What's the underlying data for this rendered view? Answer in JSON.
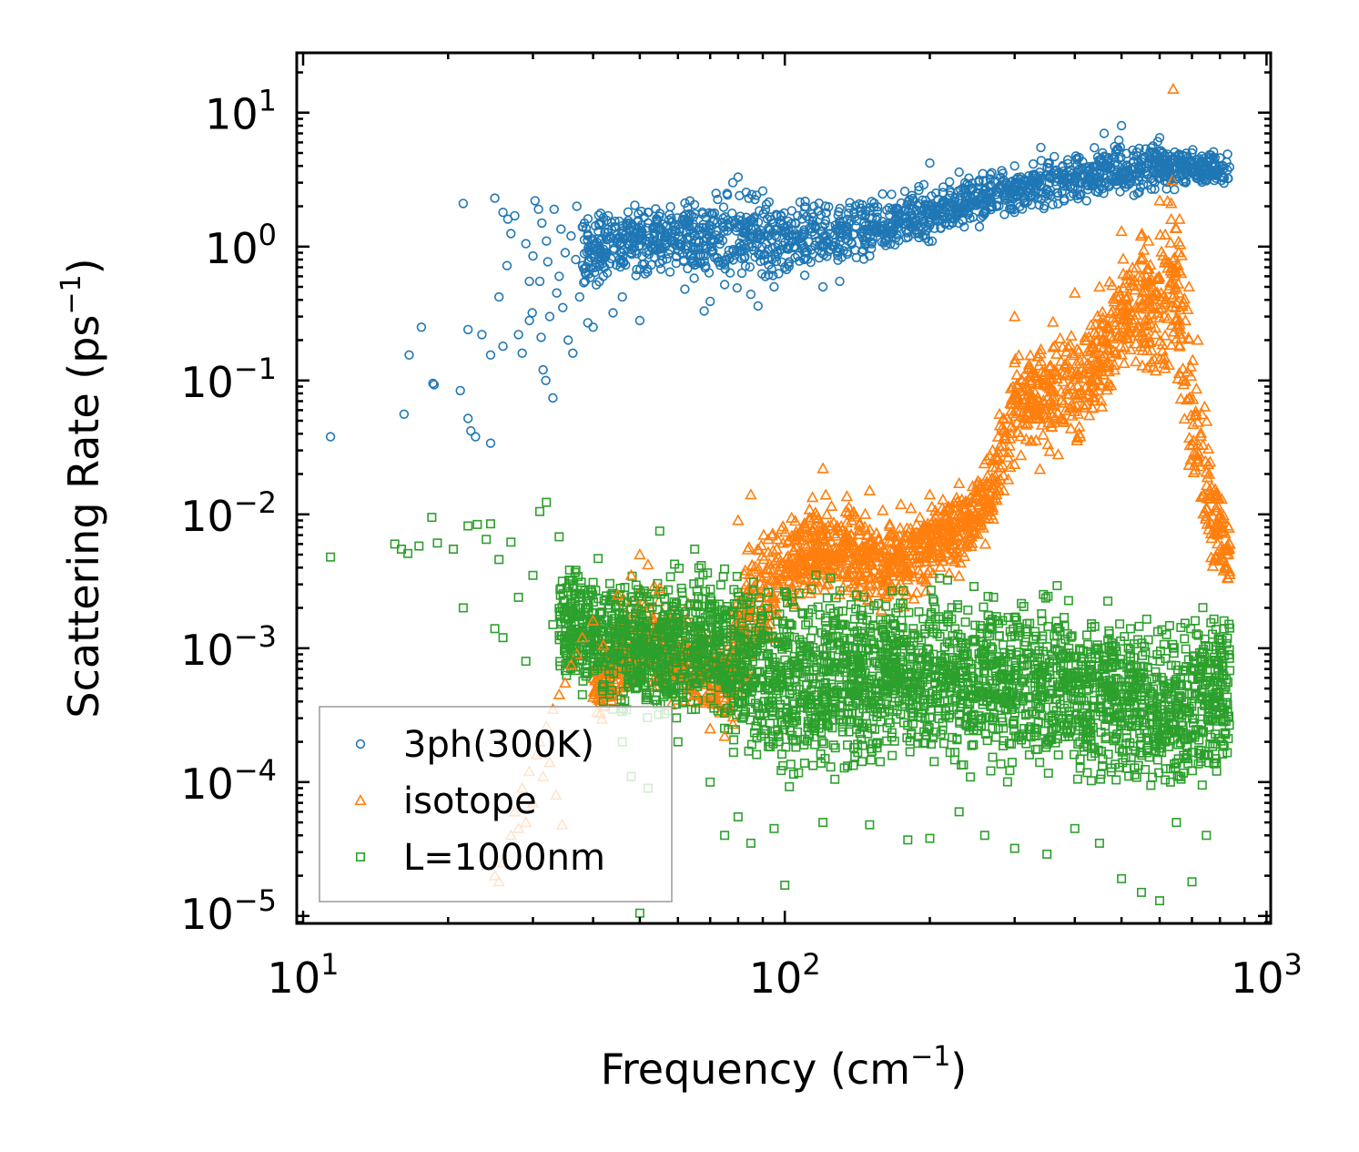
{
  "chart_data": {
    "type": "scatter",
    "xscale": "log",
    "yscale": "log",
    "xlim": [
      9.7,
      1020
    ],
    "ylim": [
      8.8e-06,
      28
    ],
    "xlabel": {
      "base": "Frequency (cm",
      "sup": "−1",
      "close": ")"
    },
    "ylabel": {
      "base": "Scattering Rate (ps",
      "sup": "−1",
      "close": ")"
    },
    "xticks": [
      {
        "value": 10,
        "base": "10",
        "exp": "1"
      },
      {
        "value": 100,
        "base": "10",
        "exp": "2"
      },
      {
        "value": 1000,
        "base": "10",
        "exp": "3"
      }
    ],
    "yticks": [
      {
        "value": 10,
        "base": "10",
        "exp": "1"
      },
      {
        "value": 1,
        "base": "10",
        "exp": "0"
      },
      {
        "value": 0.1,
        "base": "10",
        "exp": "−1"
      },
      {
        "value": 0.01,
        "base": "10",
        "exp": "−2"
      },
      {
        "value": 0.001,
        "base": "10",
        "exp": "−3"
      },
      {
        "value": 0.0001,
        "base": "10",
        "exp": "−4"
      },
      {
        "value": 1e-05,
        "base": "10",
        "exp": "−5"
      }
    ],
    "legend_position": "lower-left",
    "series": [
      {
        "name": "3ph(300K)",
        "marker": "circle",
        "color": "#1f77b4",
        "points": [
          [
            11.4,
            0.038
          ],
          [
            16.2,
            0.056
          ],
          [
            16.6,
            0.155
          ],
          [
            17.6,
            0.25
          ],
          [
            18.6,
            0.095
          ],
          [
            18.7,
            0.093
          ],
          [
            21.2,
            0.084
          ],
          [
            21.5,
            2.1
          ],
          [
            22.0,
            0.24
          ],
          [
            22.0,
            0.052
          ],
          [
            22.3,
            0.042
          ],
          [
            22.8,
            0.038
          ],
          [
            23.5,
            0.22
          ],
          [
            24.5,
            0.034
          ],
          [
            24.5,
            0.155
          ],
          [
            25.0,
            2.3
          ],
          [
            25.5,
            0.42
          ],
          [
            26.0,
            0.18
          ],
          [
            26.0,
            1.8
          ],
          [
            26.5,
            0.72
          ],
          [
            26.6,
            1.6
          ],
          [
            27.0,
            1.25
          ],
          [
            27.5,
            1.7
          ],
          [
            28.0,
            0.22
          ],
          [
            28.5,
            0.16
          ],
          [
            29.0,
            1.05
          ],
          [
            29.5,
            0.28
          ],
          [
            29.5,
            0.55
          ],
          [
            29.9,
            0.32
          ],
          [
            30.0,
            0.85
          ],
          [
            30.3,
            2.2
          ],
          [
            30.8,
            1.9
          ],
          [
            31.0,
            0.55
          ],
          [
            31.2,
            0.21
          ],
          [
            31.3,
            1.5
          ],
          [
            31.5,
            0.12
          ],
          [
            31.9,
            0.1
          ],
          [
            32.0,
            1.1
          ],
          [
            32.2,
            0.77
          ],
          [
            32.5,
            0.3
          ],
          [
            33.0,
            0.074
          ],
          [
            33.2,
            1.9
          ],
          [
            33.6,
            0.45
          ],
          [
            34.0,
            0.6
          ],
          [
            34.3,
            1.35
          ],
          [
            34.6,
            0.35
          ],
          [
            35.0,
            0.9
          ],
          [
            35.5,
            0.2
          ],
          [
            36.0,
            1.2
          ],
          [
            36.3,
            0.16
          ],
          [
            36.8,
            0.8
          ],
          [
            37.0,
            2.0
          ],
          [
            37.5,
            0.42
          ],
          [
            38.0,
            1.4
          ],
          [
            38.5,
            0.55
          ],
          [
            39.0,
            0.27
          ],
          [
            39.5,
            1.0
          ],
          [
            40.0,
            0.25
          ],
          [
            40.5,
            0.7
          ],
          [
            41.0,
            1.3
          ],
          [
            42.0,
            0.6
          ],
          [
            43.0,
            1.7
          ],
          [
            44.0,
            0.32
          ],
          [
            45.0,
            1.15
          ],
          [
            46.0,
            0.42
          ],
          [
            47.0,
            1.5
          ],
          [
            48.0,
            0.9
          ],
          [
            50.0,
            0.28
          ],
          [
            52.0,
            1.8
          ],
          [
            55.0,
            0.75
          ],
          [
            58.0,
            1.1
          ],
          [
            62.0,
            0.48
          ],
          [
            68.0,
            0.33
          ],
          [
            70.0,
            0.39
          ],
          [
            72.0,
            2.5
          ],
          [
            75.0,
            0.52
          ],
          [
            78.0,
            3.0
          ],
          [
            80.0,
            3.3
          ],
          [
            85.0,
            0.44
          ],
          [
            88.0,
            0.36
          ],
          [
            90.0,
            2.6
          ],
          [
            95.0,
            0.5
          ],
          [
            100.0,
            0.7
          ],
          [
            110.0,
            0.61
          ],
          [
            115.0,
            2.0
          ],
          [
            120.0,
            0.5
          ],
          [
            130.0,
            0.55
          ],
          [
            150.0,
            0.85
          ],
          [
            200.0,
            4.2
          ],
          [
            230.0,
            3.6
          ],
          [
            260.0,
            1.8
          ],
          [
            300.0,
            4.0
          ],
          [
            340.0,
            5.5
          ],
          [
            380.0,
            2.2
          ],
          [
            420.0,
            3.0
          ],
          [
            460.0,
            7.0
          ],
          [
            500.0,
            8.0
          ],
          [
            540.0,
            2.5
          ],
          [
            600.0,
            6.5
          ],
          [
            650.0,
            3.2
          ],
          [
            700.0,
            5.0
          ],
          [
            750.0,
            3.1
          ],
          [
            800.0,
            4.6
          ],
          [
            830.0,
            4.9
          ]
        ],
        "band": {
          "x": [
            [
              38,
              0.35,
              2.5
            ],
            [
              45,
              0.45,
              2.5
            ],
            [
              55,
              0.55,
              2.5
            ],
            [
              65,
              0.45,
              2.8
            ],
            [
              75,
              0.38,
              3.3
            ],
            [
              85,
              0.42,
              3.2
            ],
            [
              100,
              0.5,
              2.7
            ],
            [
              125,
              0.55,
              2.6
            ],
            [
              160,
              0.75,
              2.7
            ],
            [
              200,
              1.0,
              3.2
            ],
            [
              250,
              1.3,
              3.8
            ],
            [
              300,
              1.5,
              4.6
            ],
            [
              400,
              1.9,
              5.7
            ],
            [
              500,
              2.2,
              7.2
            ],
            [
              600,
              2.3,
              7.0
            ],
            [
              700,
              2.4,
              6.2
            ],
            [
              840,
              2.6,
              5.0
            ]
          ],
          "count": 1700
        }
      },
      {
        "name": "isotope",
        "marker": "triangle",
        "color": "#ff7f0e",
        "points": [
          [
            25.0,
            2e-05
          ],
          [
            25.5,
            1.8e-05
          ],
          [
            26.0,
            2.5e-05
          ],
          [
            27.0,
            4e-05
          ],
          [
            27.5,
            6e-05
          ],
          [
            28.0,
            4.5e-05
          ],
          [
            28.5,
            9e-05
          ],
          [
            29.0,
            5e-05
          ],
          [
            29.5,
            0.00012
          ],
          [
            30.0,
            7e-05
          ],
          [
            30.5,
            0.00016
          ],
          [
            31.0,
            0.0002
          ],
          [
            31.5,
            0.00011
          ],
          [
            32.0,
            0.00026
          ],
          [
            32.5,
            0.00014
          ],
          [
            33.0,
            0.00035
          ],
          [
            33.5,
            8e-05
          ],
          [
            34.0,
            0.00045
          ],
          [
            34.5,
            4.8e-05
          ],
          [
            35.0,
            0.00055
          ],
          [
            36.0,
            0.00075
          ],
          [
            37.0,
            0.0009
          ],
          [
            38.0,
            0.0012
          ],
          [
            40.0,
            0.0016
          ],
          [
            42.0,
            0.00105
          ],
          [
            45.0,
            0.0025
          ],
          [
            48.0,
            0.0035
          ],
          [
            50.0,
            0.005
          ],
          [
            52.0,
            0.0042
          ],
          [
            55.0,
            0.0028
          ],
          [
            65.0,
            0.00045
          ],
          [
            70.0,
            0.00025
          ],
          [
            75.0,
            0.00022
          ],
          [
            80.0,
            0.009
          ],
          [
            85.0,
            0.014
          ],
          [
            120.0,
            0.022
          ],
          [
            150.0,
            0.015
          ],
          [
            200.0,
            0.014
          ],
          [
            230.0,
            0.017
          ],
          [
            270.0,
            0.03
          ],
          [
            300.0,
            0.3
          ],
          [
            340.0,
            0.17
          ],
          [
            400.0,
            0.45
          ],
          [
            450.0,
            0.5
          ],
          [
            500.0,
            1.3
          ],
          [
            550.0,
            1.2
          ],
          [
            600.0,
            2.2
          ],
          [
            640.0,
            15.0
          ],
          [
            660.0,
            1.6
          ],
          [
            690.0,
            0.5
          ],
          [
            720.0,
            0.2
          ],
          [
            760.0,
            0.02
          ],
          [
            800.0,
            0.008
          ],
          [
            830.0,
            0.004
          ]
        ],
        "band": {
          "x": [
            [
              40,
              0.00025,
              0.001
            ],
            [
              50,
              0.0003,
              0.0045
            ],
            [
              60,
              0.0003,
              0.0025
            ],
            [
              75,
              0.0002,
              0.0015
            ],
            [
              82,
              0.0002,
              0.009
            ],
            [
              100,
              0.0015,
              0.012
            ],
            [
              130,
              0.0018,
              0.02
            ],
            [
              170,
              0.0015,
              0.012
            ],
            [
              200,
              0.0025,
              0.014
            ],
            [
              240,
              0.0035,
              0.02
            ],
            [
              270,
              0.006,
              0.04
            ],
            [
              300,
              0.02,
              0.25
            ],
            [
              350,
              0.02,
              0.3
            ],
            [
              400,
              0.02,
              0.45
            ],
            [
              450,
              0.04,
              0.6
            ],
            [
              500,
              0.08,
              1.0
            ],
            [
              560,
              0.08,
              1.8
            ],
            [
              620,
              0.05,
              3.0
            ],
            [
              650,
              0.05,
              5.0
            ],
            [
              700,
              0.01,
              0.4
            ],
            [
              760,
              0.003,
              0.05
            ],
            [
              840,
              0.002,
              0.01
            ]
          ],
          "count": 2200
        }
      },
      {
        "name": "L=1000nm",
        "marker": "square",
        "color": "#2ca02c",
        "points": [
          [
            11.4,
            0.0048
          ],
          [
            15.5,
            0.006
          ],
          [
            16.0,
            0.0055
          ],
          [
            16.5,
            0.0051
          ],
          [
            17.4,
            0.0058
          ],
          [
            18.5,
            0.0095
          ],
          [
            19.0,
            0.0061
          ],
          [
            20.5,
            0.0055
          ],
          [
            21.5,
            0.002
          ],
          [
            22.0,
            0.0082
          ],
          [
            23.0,
            0.0084
          ],
          [
            24.0,
            0.0065
          ],
          [
            24.5,
            0.0085
          ],
          [
            25.0,
            0.0014
          ],
          [
            25.5,
            0.0046
          ],
          [
            26.0,
            0.0012
          ],
          [
            27.0,
            0.0062
          ],
          [
            28.0,
            0.0024
          ],
          [
            29.0,
            0.0008
          ],
          [
            30.0,
            0.0035
          ],
          [
            31.0,
            0.0105
          ],
          [
            32.0,
            0.0123
          ],
          [
            33.0,
            0.0015
          ],
          [
            34.0,
            0.0068
          ],
          [
            35.0,
            0.0011
          ],
          [
            36.0,
            0.0009
          ],
          [
            38.0,
            0.00045
          ],
          [
            40.0,
            0.0031
          ],
          [
            42.0,
            0.0004
          ],
          [
            44.0,
            0.00035
          ],
          [
            46.0,
            0.0002
          ],
          [
            48.0,
            0.00011
          ],
          [
            50.0,
            1.05e-05
          ],
          [
            52.0,
            9e-05
          ],
          [
            55.0,
            0.0075
          ],
          [
            60.0,
            0.0002
          ],
          [
            65.0,
            0.0055
          ],
          [
            70.0,
            0.0001
          ],
          [
            75.0,
            4e-05
          ],
          [
            80.0,
            5.5e-05
          ],
          [
            85.0,
            3.5e-05
          ],
          [
            95.0,
            4.5e-05
          ],
          [
            100.0,
            1.7e-05
          ],
          [
            120.0,
            5e-05
          ],
          [
            150.0,
            4.8e-05
          ],
          [
            180.0,
            3.7e-05
          ],
          [
            200.0,
            3.8e-05
          ],
          [
            230.0,
            6e-05
          ],
          [
            260.0,
            4e-05
          ],
          [
            300.0,
            3.2e-05
          ],
          [
            350.0,
            2.9e-05
          ],
          [
            400.0,
            4.5e-05
          ],
          [
            450.0,
            3.5e-05
          ],
          [
            500.0,
            1.9e-05
          ],
          [
            550.0,
            1.5e-05
          ],
          [
            600.0,
            1.3e-05
          ],
          [
            650.0,
            5e-05
          ],
          [
            700.0,
            1.8e-05
          ],
          [
            750.0,
            4e-05
          ]
        ],
        "band": {
          "x": [
            [
              34,
              0.0005,
              0.006
            ],
            [
              40,
              0.0003,
              0.0055
            ],
            [
              50,
              0.0002,
              0.0048
            ],
            [
              60,
              0.00015,
              0.0055
            ],
            [
              70,
              0.00025,
              0.0065
            ],
            [
              80,
              0.0001,
              0.005
            ],
            [
              100,
              8e-05,
              0.0045
            ],
            [
              150,
              9e-05,
              0.004
            ],
            [
              200,
              9e-05,
              0.0048
            ],
            [
              300,
              8e-05,
              0.004
            ],
            [
              400,
              7e-05,
              0.0035
            ],
            [
              500,
              6e-05,
              0.003
            ],
            [
              600,
              5e-05,
              0.0028
            ],
            [
              700,
              5e-05,
              0.0035
            ],
            [
              840,
              8e-05,
              0.003
            ]
          ],
          "count": 3200
        }
      }
    ]
  }
}
